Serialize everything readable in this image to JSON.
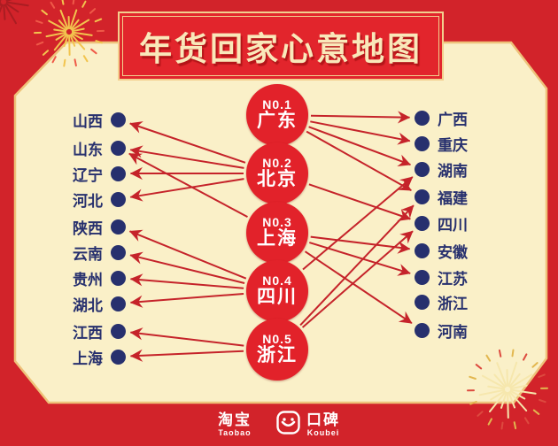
{
  "title": "年货回家心意地图",
  "hubs": [
    {
      "rank": "N0.1",
      "name": "广东"
    },
    {
      "rank": "N0.2",
      "name": "北京"
    },
    {
      "rank": "N0.3",
      "name": "上海"
    },
    {
      "rank": "N0.4",
      "name": "四川"
    },
    {
      "rank": "N0.5",
      "name": "浙江"
    }
  ],
  "columns": {
    "left": [
      "山西",
      "山东",
      "辽宁",
      "河北",
      "陕西",
      "云南",
      "贵州",
      "湖北",
      "江西",
      "上海"
    ],
    "right": [
      "广西",
      "重庆",
      "湖南",
      "福建",
      "四川",
      "安徽",
      "江苏",
      "浙江",
      "河南"
    ]
  },
  "connections": [
    {
      "from": "广东",
      "to": "广西"
    },
    {
      "from": "广东",
      "to": "重庆"
    },
    {
      "from": "广东",
      "to": "湖南"
    },
    {
      "from": "广东",
      "to": "福建"
    },
    {
      "from": "北京",
      "to": "山西"
    },
    {
      "from": "北京",
      "to": "山东"
    },
    {
      "from": "北京",
      "to": "辽宁"
    },
    {
      "from": "北京",
      "to": "河北"
    },
    {
      "from": "北京",
      "to": "四川"
    },
    {
      "from": "上海",
      "to": "山东"
    },
    {
      "from": "上海",
      "to": "安徽"
    },
    {
      "from": "上海",
      "to": "江苏"
    },
    {
      "from": "上海",
      "to": "河南"
    },
    {
      "from": "四川",
      "to": "陕西"
    },
    {
      "from": "四川",
      "to": "云南"
    },
    {
      "from": "四川",
      "to": "贵州"
    },
    {
      "from": "四川",
      "to": "湖北"
    },
    {
      "from": "四川",
      "to": "湖南"
    },
    {
      "from": "浙江",
      "to": "江西"
    },
    {
      "from": "浙江",
      "to": "上海"
    },
    {
      "from": "浙江",
      "to": "福建"
    },
    {
      "from": "浙江",
      "to": "四川"
    }
  ],
  "footer": {
    "taobao_cn": "淘宝",
    "taobao_en": "Taobao",
    "koubei_cn": "口碑",
    "koubei_en": "Koubei"
  },
  "colors": {
    "background_red": "#d2232a",
    "banner_red": "#e2252c",
    "gold_border": "#eec27a",
    "cream_panel": "#faf0c8",
    "navy": "#27306e",
    "arrow_red": "#c5232a",
    "hub_red": "#e2222a",
    "title_gold": "#f9e8ba",
    "white": "#ffffff"
  }
}
